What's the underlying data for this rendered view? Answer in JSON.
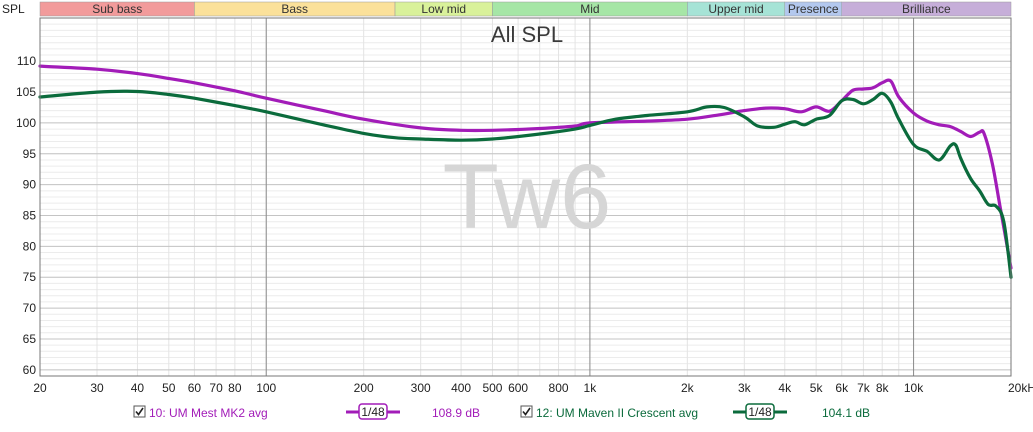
{
  "chart_data": {
    "type": "line",
    "title": "All SPL",
    "watermark": "Tw6",
    "ylabel": "SPL",
    "x_scale": "log",
    "xlim": [
      20,
      20000
    ],
    "ylim": [
      59,
      117
    ],
    "grid": true,
    "x_tick_labels": [
      {
        "value": 20,
        "label": "20"
      },
      {
        "value": 30,
        "label": "30"
      },
      {
        "value": 40,
        "label": "40"
      },
      {
        "value": 50,
        "label": "50"
      },
      {
        "value": 60,
        "label": "60"
      },
      {
        "value": 70,
        "label": "70"
      },
      {
        "value": 80,
        "label": "80"
      },
      {
        "value": 100,
        "label": "100"
      },
      {
        "value": 200,
        "label": "200"
      },
      {
        "value": 300,
        "label": "300"
      },
      {
        "value": 400,
        "label": "400"
      },
      {
        "value": 500,
        "label": "500"
      },
      {
        "value": 600,
        "label": "600"
      },
      {
        "value": 800,
        "label": "800"
      },
      {
        "value": 1000,
        "label": "1k"
      },
      {
        "value": 2000,
        "label": "2k"
      },
      {
        "value": 3000,
        "label": "3k"
      },
      {
        "value": 4000,
        "label": "4k"
      },
      {
        "value": 5000,
        "label": "5k"
      },
      {
        "value": 6000,
        "label": "6k"
      },
      {
        "value": 7000,
        "label": "7k"
      },
      {
        "value": 8000,
        "label": "8k"
      },
      {
        "value": 10000,
        "label": "10k"
      },
      {
        "value": 20000,
        "label": "20kHz"
      }
    ],
    "y_tick_labels": [
      {
        "value": 110,
        "label": "110"
      },
      {
        "value": 105,
        "label": "105"
      },
      {
        "value": 100,
        "label": "100"
      },
      {
        "value": 95,
        "label": "95"
      },
      {
        "value": 90,
        "label": "90"
      },
      {
        "value": 85,
        "label": "85"
      },
      {
        "value": 80,
        "label": "80"
      },
      {
        "value": 75,
        "label": "75"
      },
      {
        "value": 70,
        "label": "70"
      },
      {
        "value": 65,
        "label": "65"
      },
      {
        "value": 60,
        "label": "60"
      }
    ],
    "bands": [
      {
        "label": "Sub bass",
        "from": 20,
        "to": 60,
        "color": "#f29b9b"
      },
      {
        "label": "Bass",
        "from": 60,
        "to": 250,
        "color": "#fbe19a"
      },
      {
        "label": "Low mid",
        "from": 250,
        "to": 500,
        "color": "#d9f19a"
      },
      {
        "label": "Mid",
        "from": 500,
        "to": 2000,
        "color": "#a6e6a6"
      },
      {
        "label": "Upper mid",
        "from": 2000,
        "to": 4000,
        "color": "#a6e3d6"
      },
      {
        "label": "Presence",
        "from": 4000,
        "to": 6000,
        "color": "#b3c8ee"
      },
      {
        "label": "Brilliance",
        "from": 6000,
        "to": 20000,
        "color": "#c6aed9"
      }
    ],
    "series": [
      {
        "name": "10: UM Mest MK2 avg",
        "color": "#a21cb8",
        "smoothing": "1/48",
        "level": "108.9 dB",
        "points": [
          [
            20,
            109.2
          ],
          [
            30,
            108.7
          ],
          [
            40,
            108.0
          ],
          [
            50,
            107.2
          ],
          [
            60,
            106.5
          ],
          [
            80,
            105.2
          ],
          [
            100,
            104.0
          ],
          [
            150,
            102.0
          ],
          [
            200,
            100.6
          ],
          [
            300,
            99.2
          ],
          [
            400,
            98.8
          ],
          [
            500,
            98.8
          ],
          [
            700,
            99.1
          ],
          [
            900,
            99.5
          ],
          [
            1000,
            100.0
          ],
          [
            1500,
            100.3
          ],
          [
            2000,
            100.6
          ],
          [
            2500,
            101.3
          ],
          [
            3000,
            102.0
          ],
          [
            3500,
            102.4
          ],
          [
            4000,
            102.3
          ],
          [
            4500,
            101.8
          ],
          [
            5000,
            102.6
          ],
          [
            5500,
            101.9
          ],
          [
            6000,
            103.6
          ],
          [
            6500,
            105.3
          ],
          [
            7000,
            105.5
          ],
          [
            7500,
            105.7
          ],
          [
            8000,
            106.5
          ],
          [
            8500,
            106.8
          ],
          [
            9000,
            104.2
          ],
          [
            10000,
            101.6
          ],
          [
            11000,
            100.3
          ],
          [
            12000,
            99.7
          ],
          [
            13000,
            99.4
          ],
          [
            14000,
            98.6
          ],
          [
            15000,
            97.8
          ],
          [
            16000,
            98.5
          ],
          [
            16500,
            98.3
          ],
          [
            17500,
            93.5
          ],
          [
            18500,
            86.5
          ],
          [
            20000,
            76.5
          ]
        ]
      },
      {
        "name": "12: UM Maven II Crescent avg",
        "color": "#0b6b3c",
        "smoothing": "1/48",
        "level": "104.1 dB",
        "points": [
          [
            20,
            104.2
          ],
          [
            30,
            105.0
          ],
          [
            40,
            105.1
          ],
          [
            50,
            104.6
          ],
          [
            60,
            104.0
          ],
          [
            80,
            102.8
          ],
          [
            100,
            101.8
          ],
          [
            150,
            99.7
          ],
          [
            200,
            98.3
          ],
          [
            250,
            97.6
          ],
          [
            300,
            97.4
          ],
          [
            400,
            97.2
          ],
          [
            500,
            97.4
          ],
          [
            700,
            98.2
          ],
          [
            900,
            99.0
          ],
          [
            1000,
            99.6
          ],
          [
            1200,
            100.6
          ],
          [
            1500,
            101.2
          ],
          [
            2000,
            101.8
          ],
          [
            2300,
            102.6
          ],
          [
            2600,
            102.5
          ],
          [
            3000,
            101.0
          ],
          [
            3300,
            99.5
          ],
          [
            3700,
            99.3
          ],
          [
            4000,
            99.8
          ],
          [
            4300,
            100.2
          ],
          [
            4600,
            99.7
          ],
          [
            5000,
            100.6
          ],
          [
            5500,
            101.2
          ],
          [
            6000,
            103.6
          ],
          [
            6500,
            103.8
          ],
          [
            7000,
            103.1
          ],
          [
            7500,
            103.8
          ],
          [
            8000,
            104.8
          ],
          [
            8500,
            103.4
          ],
          [
            9000,
            100.6
          ],
          [
            10000,
            96.5
          ],
          [
            11000,
            95.4
          ],
          [
            12000,
            94.0
          ],
          [
            13000,
            96.3
          ],
          [
            13500,
            96.4
          ],
          [
            14000,
            94.2
          ],
          [
            15000,
            91.0
          ],
          [
            16000,
            89.0
          ],
          [
            17000,
            86.8
          ],
          [
            18000,
            86.5
          ],
          [
            19000,
            84.0
          ],
          [
            20000,
            75.0
          ]
        ]
      }
    ]
  }
}
